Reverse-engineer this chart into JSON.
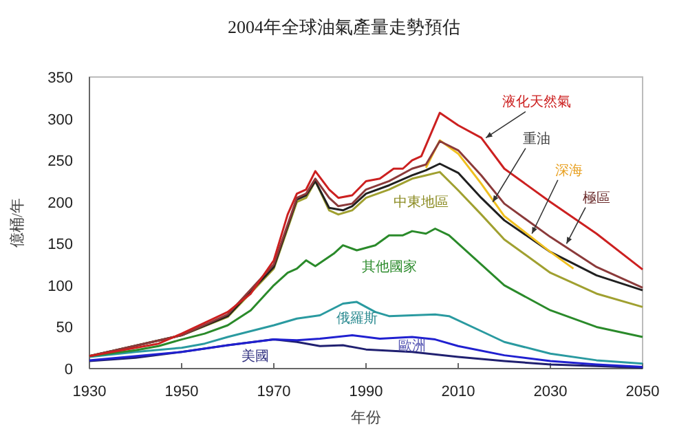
{
  "chart_data": {
    "type": "line",
    "title": "2004年全球油氣產量走勢預估",
    "xlabel": "年份",
    "ylabel": "億桶/年",
    "xlim": [
      1930,
      2050
    ],
    "xticks": [
      1930,
      1950,
      1970,
      1990,
      2010,
      2030,
      2050
    ],
    "ylim": [
      0,
      350
    ],
    "yticks": [
      0,
      50,
      100,
      150,
      200,
      250,
      300,
      350
    ],
    "grid": false,
    "series": [
      {
        "name": "美國",
        "color": "#202070",
        "x": [
          1930,
          1940,
          1950,
          1960,
          1970,
          1975,
          1980,
          1985,
          1990,
          2000,
          2010,
          2020,
          2030,
          2040,
          2050
        ],
        "values": [
          9,
          13,
          20,
          28,
          35,
          32,
          27,
          28,
          23,
          20,
          14,
          9,
          5,
          3,
          1
        ]
      },
      {
        "name": "歐洲",
        "color": "#2020d0",
        "x": [
          1930,
          1950,
          1960,
          1970,
          1975,
          1980,
          1987,
          1993,
          2000,
          2005,
          2010,
          2020,
          2030,
          2040,
          2050
        ],
        "values": [
          10,
          20,
          28,
          35,
          34,
          36,
          40,
          36,
          38,
          35,
          27,
          16,
          9,
          5,
          2
        ]
      },
      {
        "name": "俄羅斯",
        "color": "#2a9aa0",
        "x": [
          1930,
          1940,
          1950,
          1955,
          1960,
          1965,
          1970,
          1975,
          1980,
          1985,
          1988,
          1992,
          1995,
          2000,
          2005,
          2008,
          2015,
          2020,
          2030,
          2040,
          2050
        ],
        "values": [
          14,
          20,
          25,
          30,
          38,
          45,
          52,
          60,
          64,
          78,
          80,
          68,
          63,
          64,
          65,
          63,
          45,
          32,
          18,
          10,
          6
        ]
      },
      {
        "name": "其他國家",
        "color": "#2a8a2a",
        "x": [
          1930,
          1940,
          1945,
          1950,
          1955,
          1960,
          1965,
          1970,
          1973,
          1975,
          1977,
          1979,
          1983,
          1985,
          1988,
          1992,
          1995,
          1998,
          2000,
          2003,
          2005,
          2008,
          2012,
          2020,
          2030,
          2040,
          2050
        ],
        "values": [
          15,
          22,
          27,
          35,
          42,
          52,
          70,
          100,
          115,
          120,
          130,
          123,
          138,
          148,
          142,
          148,
          160,
          160,
          165,
          162,
          168,
          160,
          140,
          100,
          70,
          50,
          38
        ]
      },
      {
        "name": "中東地區",
        "color": "#a0a030",
        "x": [
          1930,
          1950,
          1960,
          1970,
          1975,
          1977,
          1979,
          1982,
          1984,
          1987,
          1990,
          1995,
          2000,
          2003,
          2006,
          2010,
          2015,
          2020,
          2030,
          2040,
          2050
        ],
        "values": [
          15,
          40,
          62,
          120,
          200,
          205,
          225,
          190,
          185,
          190,
          205,
          215,
          228,
          232,
          236,
          214,
          185,
          155,
          115,
          90,
          74
        ]
      },
      {
        "name": "重油",
        "color": "#202020",
        "x": [
          1930,
          1950,
          1960,
          1970,
          1975,
          1977,
          1979,
          1982,
          1985,
          1987,
          1990,
          1995,
          2000,
          2003,
          2006,
          2010,
          2015,
          2020,
          2030,
          2040,
          2050
        ],
        "values": [
          15,
          40,
          63,
          122,
          203,
          208,
          225,
          193,
          190,
          195,
          210,
          220,
          232,
          238,
          246,
          235,
          205,
          178,
          140,
          112,
          94
        ]
      },
      {
        "name": "深海",
        "color": "#f0c020",
        "x": [
          2003,
          2006,
          2010,
          2015,
          2020,
          2030,
          2035
        ],
        "values": [
          241,
          274,
          258,
          222,
          183,
          140,
          120
        ]
      },
      {
        "name": "極區",
        "color": "#8b3a3a",
        "x": [
          1930,
          1950,
          1960,
          1970,
          1975,
          1977,
          1979,
          1982,
          1984,
          1987,
          1990,
          1995,
          2000,
          2003,
          2006,
          2010,
          2015,
          2020,
          2030,
          2040,
          2050
        ],
        "values": [
          15,
          40,
          65,
          125,
          205,
          210,
          228,
          205,
          195,
          198,
          215,
          225,
          240,
          245,
          273,
          262,
          232,
          198,
          158,
          122,
          97
        ]
      },
      {
        "name": "液化天然氣",
        "color": "#cc2020",
        "x": [
          1930,
          1945,
          1950,
          1955,
          1960,
          1965,
          1970,
          1973,
          1975,
          1977,
          1979,
          1982,
          1984,
          1987,
          1990,
          1993,
          1996,
          1998,
          2000,
          2002,
          2006,
          2010,
          2015,
          2020,
          2030,
          2040,
          2050
        ],
        "values": [
          15,
          30,
          42,
          55,
          68,
          90,
          130,
          185,
          210,
          215,
          237,
          215,
          205,
          208,
          225,
          228,
          240,
          240,
          250,
          255,
          307,
          292,
          277,
          240,
          200,
          162,
          119
        ]
      }
    ]
  }
}
